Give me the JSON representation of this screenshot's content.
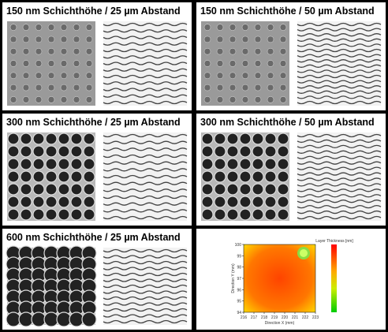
{
  "panels": [
    {
      "title": "150 nm Schichthöhe / 25 µm Abstand"
    },
    {
      "title": "150 nm Schichthöhe / 50 µm Abstand"
    },
    {
      "title": "300 nm Schichthöhe / 25 µm Abstand"
    },
    {
      "title": "300 nm Schichthöhe / 50 µm Abstand"
    },
    {
      "title": "600 nm Schichthöhe / 25 µm Abstand"
    }
  ],
  "heatmap": {
    "colorbar_label": "Layer Thickness [nm]",
    "x_label": "Direction X (mm)",
    "y_label": "Direction Y (mm)",
    "xlim": [
      216,
      223
    ],
    "ylim": [
      94,
      100
    ],
    "xticks": [
      216,
      217,
      218,
      219,
      220,
      221,
      222,
      223
    ],
    "yticks": [
      94,
      95,
      96,
      97,
      98,
      99,
      100
    ]
  }
}
